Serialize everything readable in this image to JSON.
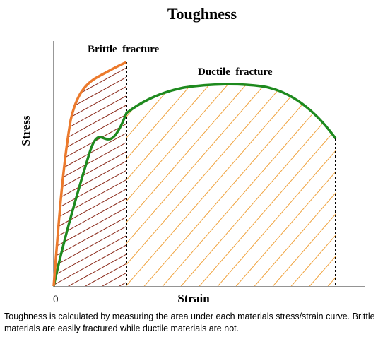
{
  "diagram": {
    "title": "Toughness",
    "x_axis_label": "Strain",
    "y_axis_label": "Stress",
    "origin_label": "0",
    "brittle_label": "Brittle  fracture",
    "ductile_label": "Ductile  fracture",
    "colors": {
      "brittle_curve": "#ec7a2c",
      "brittle_hatch": "#8b2a1a",
      "ductile_curve": "#1e8a1e",
      "ductile_hatch": "#f0a23c",
      "axis": "#555555"
    }
  },
  "caption": "Toughness is calculated by measuring the area under each materials stress/strain curve. Brittle materials are easily fractured while ductile materials are not."
}
